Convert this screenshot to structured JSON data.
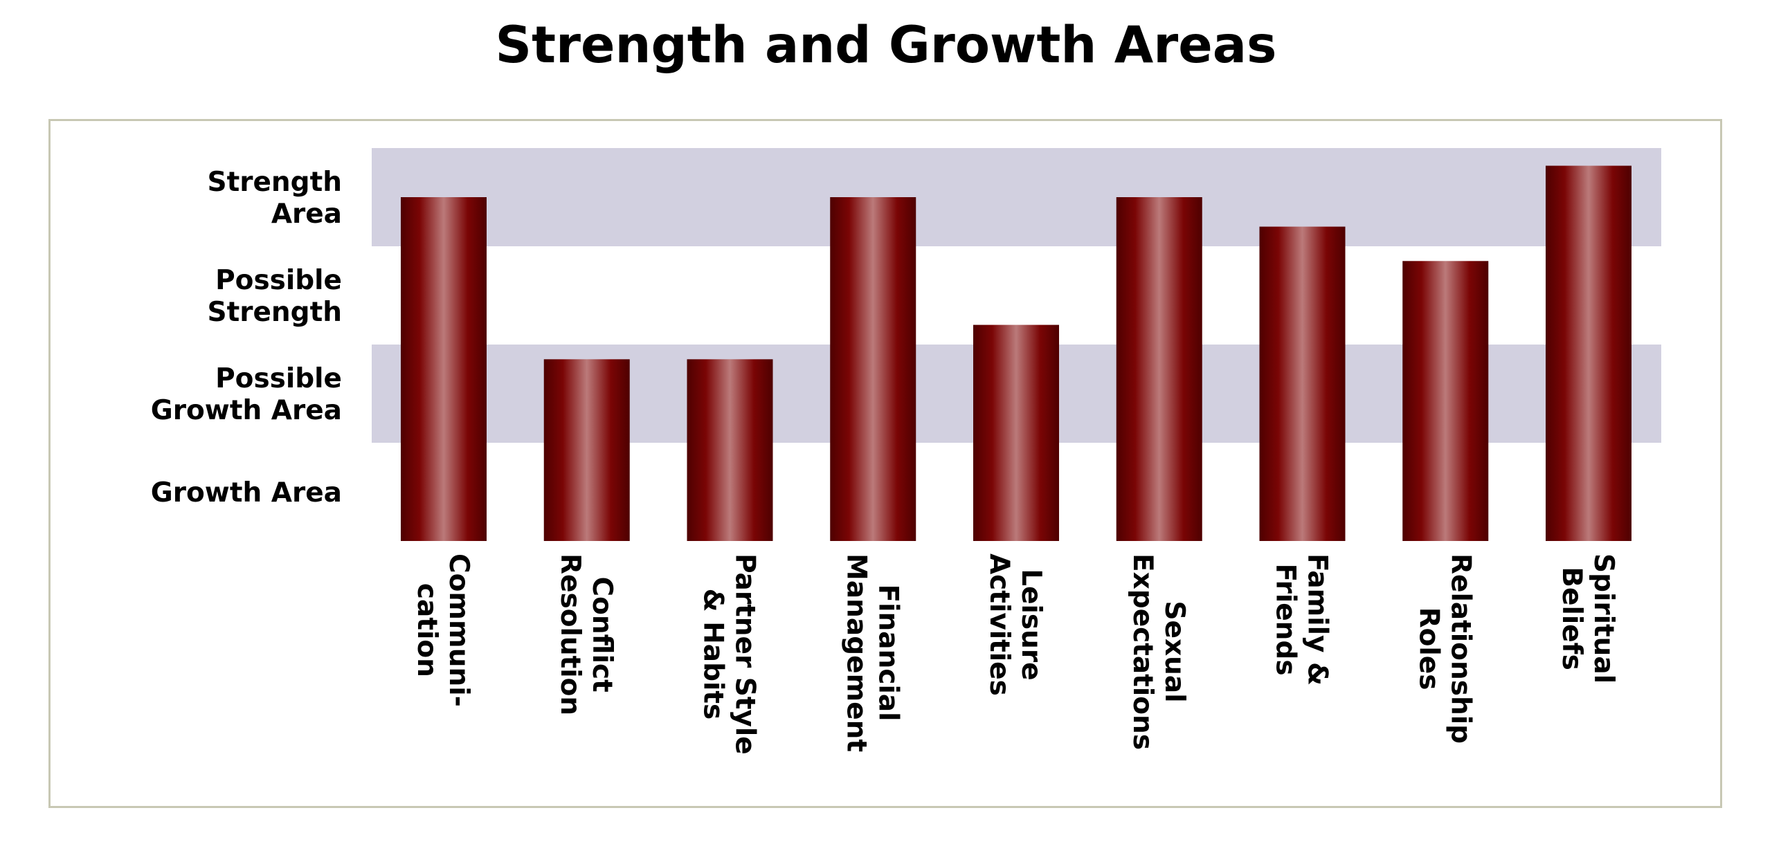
{
  "chart_data": {
    "type": "bar",
    "title": "Strength and Growth Areas",
    "categories": [
      [
        "Communi-",
        "cation"
      ],
      [
        "Conflict",
        "Resolution"
      ],
      [
        "Partner Style",
        "& Habits"
      ],
      [
        "Financial",
        "Management"
      ],
      [
        "Leisure",
        "Activities"
      ],
      [
        "Sexual",
        "Expectations"
      ],
      [
        "Family &",
        "Friends"
      ],
      [
        "Relationship",
        "Roles"
      ],
      [
        "Spiritual",
        "Beliefs"
      ]
    ],
    "values": [
      3.5,
      1.85,
      1.85,
      3.5,
      2.2,
      3.5,
      3.2,
      2.85,
      3.82
    ],
    "ylim": [
      0,
      4
    ],
    "y_categories": [
      [
        "Growth Area"
      ],
      [
        "Possible",
        "Growth Area"
      ],
      [
        "Possible",
        "Strength"
      ],
      [
        "Strength",
        "Area"
      ]
    ],
    "shaded_bands": [
      [
        1,
        2
      ],
      [
        3,
        4
      ]
    ],
    "colors": {
      "bar_dark": "#5a0000",
      "bar_mid": "#800a0a",
      "bar_highlight": "#b87474",
      "band": "#d2d0e0"
    },
    "grid": false,
    "legend": "none"
  }
}
